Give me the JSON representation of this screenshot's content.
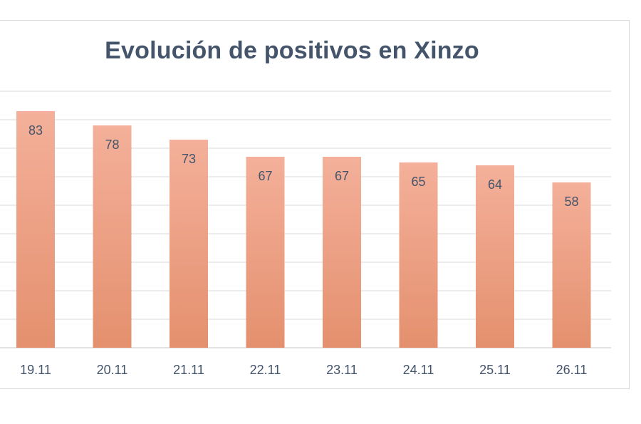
{
  "chart_data": {
    "type": "bar",
    "title": "Evolución de positivos en Xinzo",
    "categories": [
      "19.11",
      "20.11",
      "21.11",
      "22.11",
      "23.11",
      "24.11",
      "25.11",
      "26.11"
    ],
    "values": [
      83,
      78,
      73,
      67,
      67,
      65,
      64,
      58
    ],
    "ylim": [
      0,
      90
    ],
    "grid": true,
    "colors": {
      "bar_top": "#f4b09a",
      "bar_bottom": "#e4906e",
      "grid": "#d9d9d9",
      "text": "#44546a"
    }
  }
}
